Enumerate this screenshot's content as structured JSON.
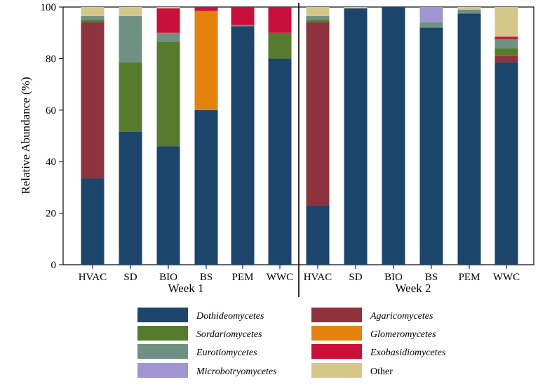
{
  "chart_data": {
    "type": "bar",
    "stacked": true,
    "ylabel": "Relative Abundance (%)",
    "ylim": [
      0,
      100
    ],
    "yticks": [
      0,
      20,
      40,
      60,
      80,
      100
    ],
    "grid": false,
    "legend_position": "bottom",
    "groups": [
      {
        "label": "Week 1",
        "categories": [
          "HVAC",
          "SD",
          "BIO",
          "BS",
          "PEM",
          "WWC"
        ]
      },
      {
        "label": "Week 2",
        "categories": [
          "HVAC",
          "SD",
          "BIO",
          "BS",
          "PEM",
          "WWC"
        ]
      }
    ],
    "series": [
      {
        "name": "Dothideomycetes",
        "italic": true,
        "color": "#1c456c",
        "week1": [
          33.5,
          51.5,
          46,
          60,
          92.5,
          80
        ],
        "week2": [
          23,
          99.5,
          100,
          92,
          97.5,
          78.5
        ]
      },
      {
        "name": "Agaricomycetes",
        "italic": true,
        "color": "#8e323d",
        "week1": [
          60.5,
          0,
          0,
          0,
          0,
          0
        ],
        "week2": [
          71,
          0,
          0,
          0,
          0,
          2.5
        ]
      },
      {
        "name": "Sordariomycetes",
        "italic": true,
        "color": "#567b2c",
        "week1": [
          1,
          27,
          40.5,
          0,
          0,
          10
        ],
        "week2": [
          1,
          0,
          0,
          0,
          0,
          3
        ]
      },
      {
        "name": "Glomeromycetes",
        "italic": true,
        "color": "#e5820e",
        "week1": [
          0,
          0,
          0,
          38.5,
          0,
          0
        ],
        "week2": [
          0,
          0,
          0,
          0,
          0,
          0
        ]
      },
      {
        "name": "Eurotiomycetes",
        "italic": true,
        "color": "#6e9183",
        "week1": [
          1.5,
          18,
          3.5,
          0,
          0.5,
          0
        ],
        "week2": [
          1.5,
          0,
          0,
          2,
          1.5,
          3.5
        ]
      },
      {
        "name": "Exobasidiomycetes",
        "italic": true,
        "color": "#c90f3a",
        "week1": [
          0,
          0,
          9.5,
          1.5,
          7,
          10
        ],
        "week2": [
          0,
          0,
          0,
          0,
          0,
          1
        ]
      },
      {
        "name": "Microbotryomycetes",
        "italic": true,
        "color": "#a194d2",
        "week1": [
          0,
          0,
          0,
          0,
          0,
          0
        ],
        "week2": [
          0,
          0,
          0,
          6,
          0,
          0
        ]
      },
      {
        "name": "Other",
        "italic": false,
        "color": "#d4c787",
        "week1": [
          3.5,
          3.5,
          0.5,
          0,
          0,
          0
        ],
        "week2": [
          3.5,
          0.5,
          0,
          0,
          1,
          11.5
        ]
      }
    ]
  }
}
